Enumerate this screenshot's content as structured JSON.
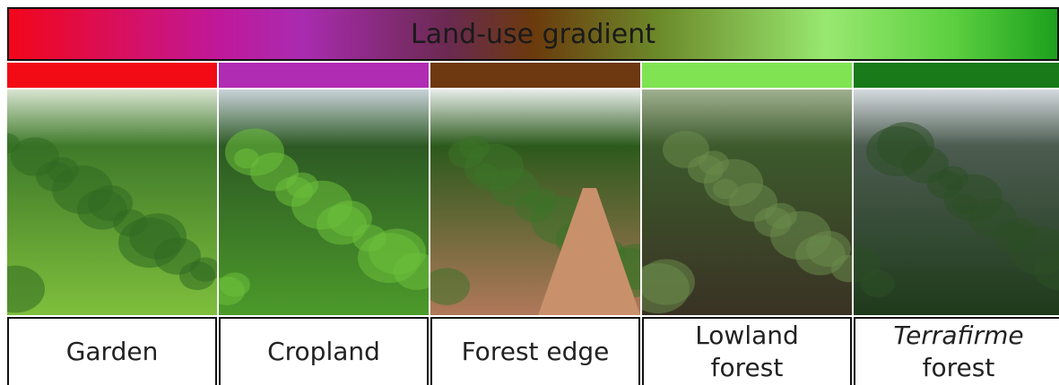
{
  "header": {
    "title": "Land-use gradient"
  },
  "columns": [
    {
      "label": [
        "Garden"
      ],
      "color": "#f20a14"
    },
    {
      "label": [
        "Cropland"
      ],
      "color": "#b02cb2"
    },
    {
      "label": [
        "Forest edge"
      ],
      "color": "#6e3810"
    },
    {
      "label": [
        "Lowland",
        "forest"
      ],
      "color": "#80e452"
    },
    {
      "label": [
        "Terrafirme",
        "forest"
      ],
      "color": "#187a18"
    }
  ]
}
